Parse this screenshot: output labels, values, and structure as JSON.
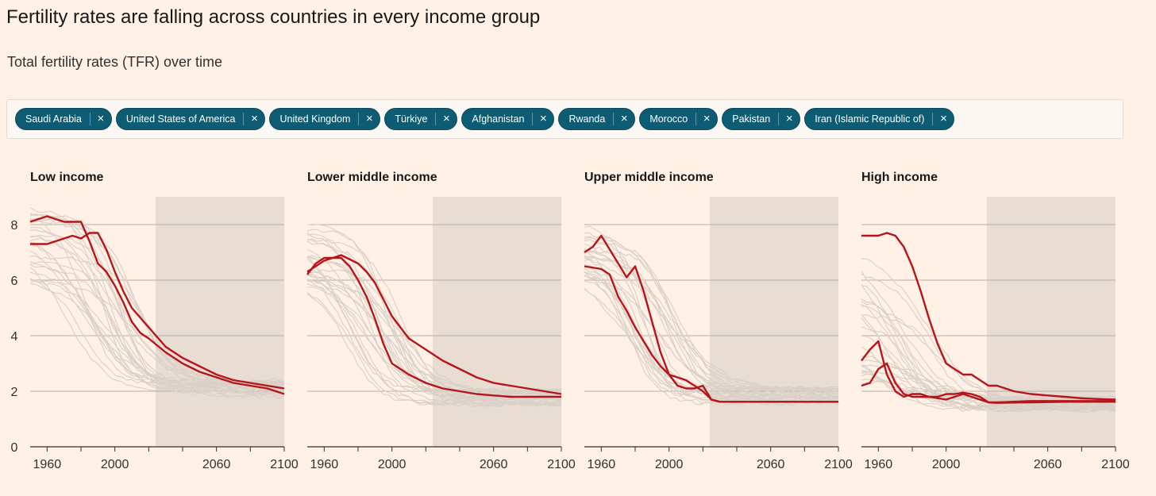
{
  "title": "Fertility rates are falling across countries in every income group",
  "subtitle": "Total fertility rates (TFR) over time",
  "chips": [
    {
      "label": "Saudi Arabia"
    },
    {
      "label": "United States of America"
    },
    {
      "label": "United Kingdom"
    },
    {
      "label": "Türkiye"
    },
    {
      "label": "Afghanistan"
    },
    {
      "label": "Rwanda"
    },
    {
      "label": "Morocco"
    },
    {
      "label": "Pakistan"
    },
    {
      "label": "Iran (Islamic Republic of)"
    }
  ],
  "chip_close_glyph": "×",
  "colors": {
    "background": "#fff1e5",
    "highlight": "#b4161b",
    "context": "#d9d0c8",
    "projection_shade": "#e8dcd3",
    "chip": "#0d5c73"
  },
  "chart_data": [
    {
      "type": "line",
      "title": "Low income",
      "xlim": [
        1950,
        2100
      ],
      "ylim": [
        0,
        9
      ],
      "yticks": [
        "0",
        "2",
        "4",
        "6",
        "8"
      ],
      "xticks": [
        "1960",
        "2000",
        "2060",
        "2100"
      ],
      "projection_range": [
        2024,
        2100
      ],
      "highlighted_series": [
        {
          "x": [
            1950,
            1960,
            1970,
            1980,
            1985,
            1990,
            1995,
            2000,
            2005,
            2010,
            2015,
            2020,
            2030,
            2040,
            2050,
            2060,
            2070,
            2080,
            2090,
            2100
          ],
          "y": [
            8.1,
            8.3,
            8.1,
            8.1,
            7.4,
            6.6,
            6.3,
            5.8,
            5.2,
            4.5,
            4.1,
            3.9,
            3.4,
            3.0,
            2.7,
            2.5,
            2.3,
            2.2,
            2.1,
            1.9
          ]
        },
        {
          "x": [
            1950,
            1960,
            1970,
            1975,
            1980,
            1985,
            1990,
            1995,
            2000,
            2005,
            2010,
            2020,
            2030,
            2040,
            2050,
            2060,
            2070,
            2080,
            2090,
            2100
          ],
          "y": [
            7.3,
            7.3,
            7.5,
            7.6,
            7.5,
            7.7,
            7.7,
            7.1,
            6.3,
            5.6,
            5.0,
            4.3,
            3.6,
            3.2,
            2.9,
            2.6,
            2.4,
            2.3,
            2.2,
            2.1
          ]
        }
      ]
    },
    {
      "type": "line",
      "title": "Lower middle income",
      "xlim": [
        1950,
        2100
      ],
      "ylim": [
        0,
        9
      ],
      "yticks": [],
      "xticks": [
        "1960",
        "2000",
        "2060",
        "2100"
      ],
      "projection_range": [
        2024,
        2100
      ],
      "highlighted_series": [
        {
          "x": [
            1950,
            1955,
            1960,
            1970,
            1975,
            1980,
            1985,
            1990,
            1995,
            2000,
            2010,
            2020,
            2030,
            2040,
            2050,
            2060,
            2070,
            2080,
            2090,
            2100
          ],
          "y": [
            6.2,
            6.6,
            6.8,
            6.8,
            6.5,
            6.0,
            5.4,
            4.6,
            3.7,
            3.0,
            2.6,
            2.3,
            2.1,
            2.0,
            1.9,
            1.85,
            1.8,
            1.8,
            1.8,
            1.8
          ]
        },
        {
          "x": [
            1950,
            1960,
            1970,
            1980,
            1985,
            1990,
            1995,
            2000,
            2005,
            2010,
            2020,
            2030,
            2040,
            2050,
            2060,
            2070,
            2080,
            2090,
            2100
          ],
          "y": [
            6.3,
            6.7,
            6.9,
            6.6,
            6.3,
            5.9,
            5.3,
            4.7,
            4.3,
            3.9,
            3.5,
            3.1,
            2.8,
            2.5,
            2.3,
            2.2,
            2.1,
            2.0,
            1.9
          ]
        }
      ]
    },
    {
      "type": "line",
      "title": "Upper middle income",
      "xlim": [
        1950,
        2100
      ],
      "ylim": [
        0,
        9
      ],
      "yticks": [],
      "xticks": [
        "1960",
        "2000",
        "2060",
        "2100"
      ],
      "projection_range": [
        2024,
        2100
      ],
      "highlighted_series": [
        {
          "x": [
            1950,
            1955,
            1960,
            1965,
            1970,
            1975,
            1980,
            1985,
            1990,
            1995,
            2000,
            2005,
            2010,
            2015,
            2020,
            2025,
            2030,
            2050,
            2070,
            2100
          ],
          "y": [
            7.0,
            7.2,
            7.6,
            7.1,
            6.6,
            6.1,
            6.5,
            5.6,
            4.5,
            3.4,
            2.6,
            2.2,
            2.1,
            2.1,
            2.2,
            1.7,
            1.62,
            1.62,
            1.62,
            1.62
          ]
        },
        {
          "x": [
            1950,
            1960,
            1965,
            1970,
            1975,
            1980,
            1985,
            1990,
            1995,
            2000,
            2005,
            2010,
            2015,
            2020,
            2025,
            2030,
            2050,
            2070,
            2100
          ],
          "y": [
            6.5,
            6.4,
            6.2,
            5.4,
            4.9,
            4.3,
            3.8,
            3.3,
            2.9,
            2.6,
            2.5,
            2.4,
            2.2,
            2.0,
            1.7,
            1.62,
            1.62,
            1.62,
            1.62
          ]
        }
      ]
    },
    {
      "type": "line",
      "title": "High income",
      "xlim": [
        1950,
        2100
      ],
      "ylim": [
        0,
        9
      ],
      "yticks": [],
      "xticks": [
        "1960",
        "2000",
        "2060",
        "2100"
      ],
      "projection_range": [
        2024,
        2100
      ],
      "highlighted_series": [
        {
          "x": [
            1950,
            1960,
            1965,
            1970,
            1975,
            1980,
            1985,
            1990,
            1995,
            2000,
            2005,
            2010,
            2015,
            2020,
            2025,
            2030,
            2040,
            2050,
            2060,
            2070,
            2080,
            2090,
            2100
          ],
          "y": [
            7.6,
            7.6,
            7.7,
            7.6,
            7.2,
            6.5,
            5.6,
            4.6,
            3.7,
            3.0,
            2.8,
            2.6,
            2.6,
            2.4,
            2.2,
            2.2,
            2.0,
            1.9,
            1.85,
            1.8,
            1.75,
            1.72,
            1.7
          ]
        },
        {
          "x": [
            1950,
            1955,
            1960,
            1965,
            1970,
            1975,
            1980,
            1985,
            1990,
            1995,
            2000,
            2005,
            2010,
            2015,
            2020,
            2025,
            2030,
            2050,
            2070,
            2100
          ],
          "y": [
            3.1,
            3.5,
            3.8,
            2.6,
            2.0,
            1.8,
            1.9,
            1.9,
            1.8,
            1.8,
            1.9,
            1.9,
            1.95,
            1.9,
            1.8,
            1.6,
            1.6,
            1.65,
            1.65,
            1.65
          ]
        },
        {
          "x": [
            1950,
            1955,
            1960,
            1965,
            1970,
            1975,
            1980,
            1990,
            2000,
            2005,
            2010,
            2015,
            2020,
            2025,
            2030,
            2050,
            2070,
            2100
          ],
          "y": [
            2.2,
            2.3,
            2.8,
            3.0,
            2.3,
            1.9,
            1.8,
            1.8,
            1.7,
            1.8,
            1.9,
            1.8,
            1.7,
            1.6,
            1.58,
            1.6,
            1.62,
            1.62
          ]
        }
      ]
    }
  ]
}
